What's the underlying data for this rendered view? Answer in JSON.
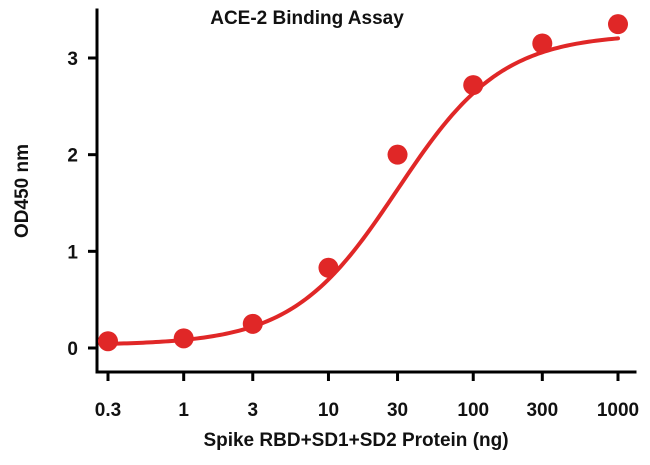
{
  "chart_data": {
    "type": "scatter",
    "title": "ACE-2 Binding Assay",
    "xlabel": "Spike RBD+SD1+SD2 Protein (ng)",
    "ylabel": "OD450 nm",
    "x_scale": "log",
    "x_ticks": [
      0.3,
      1,
      3,
      10,
      30,
      100,
      300,
      1000
    ],
    "x_tick_labels": [
      "0.3",
      "1",
      "3",
      "10",
      "30",
      "100",
      "300",
      "1000"
    ],
    "y_ticks": [
      0,
      1,
      2,
      3
    ],
    "y_tick_labels": [
      "0",
      "1",
      "2",
      "3"
    ],
    "xlim": [
      0.3,
      1000
    ],
    "ylim": [
      -0.1,
      3.45
    ],
    "grid": false,
    "legend": "none",
    "series": [
      {
        "x": [
          0.3,
          1,
          3,
          10,
          30,
          100,
          300,
          1000
        ],
        "y": [
          0.07,
          0.1,
          0.25,
          0.83,
          2.0,
          2.72,
          3.15,
          3.35
        ]
      }
    ],
    "fit_curve": {
      "model": "4PL",
      "bottom": 0.03,
      "top": 3.25,
      "ec50": 30,
      "hill": 1.2
    },
    "colors": {
      "series": "#e02727",
      "axes": "#000000"
    }
  }
}
